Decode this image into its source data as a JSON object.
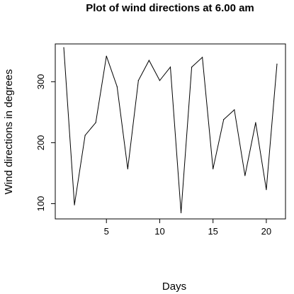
{
  "chart_data": {
    "type": "line",
    "title": "Plot of wind directions at 6.00 am",
    "xlabel": "Days",
    "ylabel": "Wind directions in degrees",
    "x": [
      1,
      2,
      3,
      4,
      5,
      6,
      7,
      8,
      9,
      10,
      11,
      12,
      13,
      14,
      15,
      16,
      17,
      18,
      19,
      20,
      21
    ],
    "series": [
      {
        "values": [
          356,
          98,
          212,
          233,
          342,
          292,
          157,
          302,
          335,
          302,
          324,
          85,
          324,
          340,
          157,
          238,
          254,
          146,
          233,
          123,
          329
        ]
      }
    ],
    "xlim": [
      0.2,
      21.8
    ],
    "ylim": [
      75,
      362
    ],
    "x_ticks": [
      5,
      10,
      15,
      20
    ],
    "y_ticks": [
      100,
      200,
      300
    ],
    "grid": false,
    "legend": "none",
    "line_color": "#000000"
  }
}
